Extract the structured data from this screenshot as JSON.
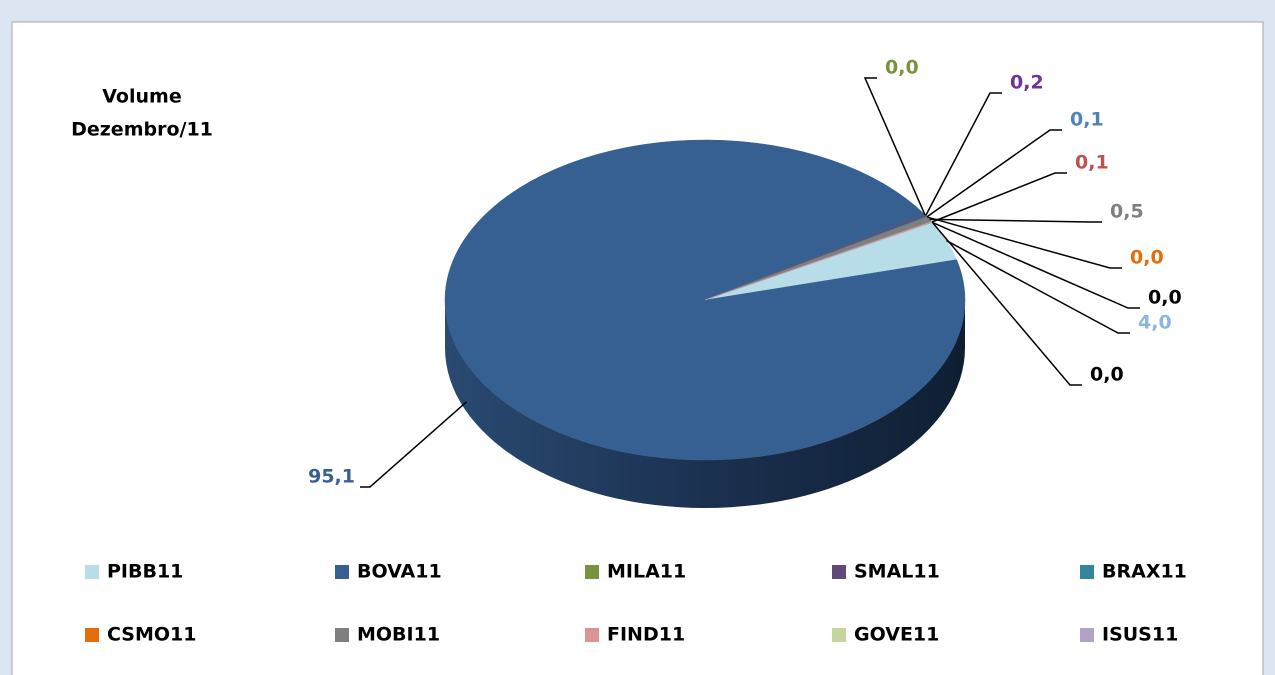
{
  "chart_data": {
    "type": "pie3d",
    "title": [
      "Volume",
      "Dezembro/11"
    ],
    "series": [
      {
        "name": "PIBB11",
        "color": "#b7dde8",
        "label_color": "#8eb4e3",
        "value": 4.0,
        "value_label": "4,0"
      },
      {
        "name": "BOVA11",
        "color": "#376092",
        "label_color": "#376092",
        "value": 95.1,
        "value_label": "95,1"
      },
      {
        "name": "MILA11",
        "color": "#77933c",
        "label_color": "#77933c",
        "value": 0.0,
        "value_label": "0,0"
      },
      {
        "name": "SMAL11",
        "color": "#604a7b",
        "label_color": "#7030a0",
        "value": 0.2,
        "value_label": "0,2"
      },
      {
        "name": "BRAX11",
        "color": "#31859c",
        "label_color": "#4f81bd",
        "value": 0.1,
        "value_label": "0,1"
      },
      {
        "name": "CSMO11",
        "color": "#e46c0a",
        "label_color": "#e46c0a",
        "value": 0.0,
        "value_label": "0,0"
      },
      {
        "name": "MOBI11",
        "color": "#7f7f7f",
        "label_color": "#7f7f7f",
        "value": 0.5,
        "value_label": "0,5"
      },
      {
        "name": "FIND11",
        "color": "#d99694",
        "label_color": "#c0504d",
        "value": 0.1,
        "value_label": "0,1"
      },
      {
        "name": "GOVE11",
        "color": "#c3d69b",
        "label_color": "#000000",
        "value": 0.0,
        "value_label": "0,0"
      },
      {
        "name": "ISUS11",
        "color": "#b3a2c7",
        "label_color": "#000000",
        "value": 0.0,
        "value_label": "0,0"
      }
    ]
  }
}
